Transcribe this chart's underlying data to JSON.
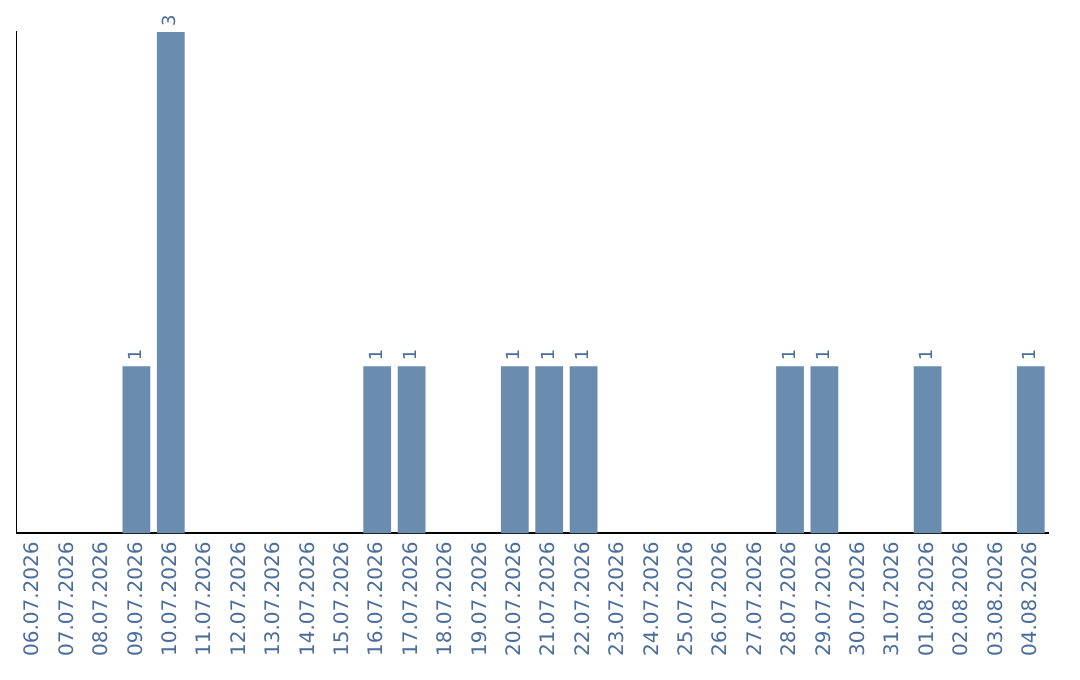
{
  "chart_data": {
    "type": "bar",
    "categories": [
      "06.07.2026",
      "07.07.2026",
      "08.07.2026",
      "09.07.2026",
      "10.07.2026",
      "11.07.2026",
      "12.07.2026",
      "13.07.2026",
      "14.07.2026",
      "15.07.2026",
      "16.07.2026",
      "17.07.2026",
      "18.07.2026",
      "19.07.2026",
      "20.07.2026",
      "21.07.2026",
      "22.07.2026",
      "23.07.2026",
      "24.07.2026",
      "25.07.2026",
      "26.07.2026",
      "27.07.2026",
      "28.07.2026",
      "29.07.2026",
      "30.07.2026",
      "31.07.2026",
      "01.08.2026",
      "02.08.2026",
      "03.08.2026",
      "04.08.2026"
    ],
    "values": [
      0,
      0,
      0,
      1,
      3,
      0,
      0,
      0,
      0,
      0,
      1,
      1,
      0,
      0,
      1,
      1,
      1,
      0,
      0,
      0,
      0,
      0,
      1,
      1,
      0,
      0,
      1,
      0,
      0,
      1
    ],
    "value_labels": [
      null,
      null,
      null,
      "1",
      "3",
      null,
      null,
      null,
      null,
      null,
      "1",
      "1",
      null,
      null,
      "1",
      "1",
      "1",
      null,
      null,
      null,
      null,
      null,
      "1",
      "1",
      null,
      null,
      "1",
      null,
      null,
      "1"
    ],
    "color": "#6a8caf",
    "ylim": [
      0,
      3
    ],
    "grid": false,
    "legend": false,
    "tick_labels": "x"
  }
}
